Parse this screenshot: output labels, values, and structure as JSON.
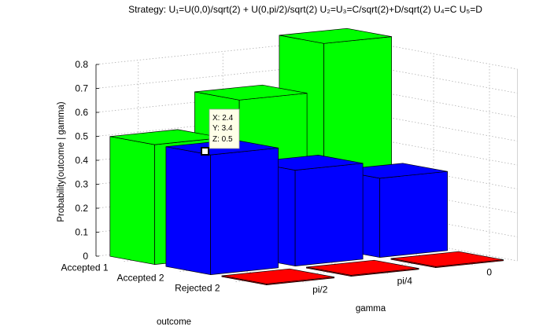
{
  "chart_data": {
    "type": "bar3d",
    "title": "Strategy: U₁=U(0,0)/sqrt(2) + U(0,pi/2)/sqrt(2) U₂=U₃=C/sqrt(2)+D/sqrt(2) U₄=C U₅=D",
    "xlabel": "outcome",
    "ylabel": "gamma",
    "zlabel": "Probability(outcome | gamma)",
    "outcomes": [
      "Accepted 1",
      "Accepted 2",
      "Rejected 2"
    ],
    "gammas": [
      "pi/2",
      "pi/4",
      "0"
    ],
    "z_ticks": [
      "0",
      "0.1",
      "0.2",
      "0.3",
      "0.4",
      "0.5",
      "0.6",
      "0.7",
      "0.8"
    ],
    "zlim": [
      0,
      0.8
    ],
    "grid": true,
    "series": [
      {
        "name": "Accepted 1",
        "color": "#00ff00",
        "values": [
          0.5,
          0.65,
          0.85
        ]
      },
      {
        "name": "Accepted 2",
        "color": "#0000ff",
        "values": [
          0.5,
          0.4,
          0.33
        ]
      },
      {
        "name": "Rejected 2",
        "color": "#ff0000",
        "values": [
          0,
          0,
          0
        ]
      }
    ],
    "datatip": {
      "x": "X: 2.4",
      "y": "Y: 3.4",
      "z": "Z: 0.5"
    }
  }
}
